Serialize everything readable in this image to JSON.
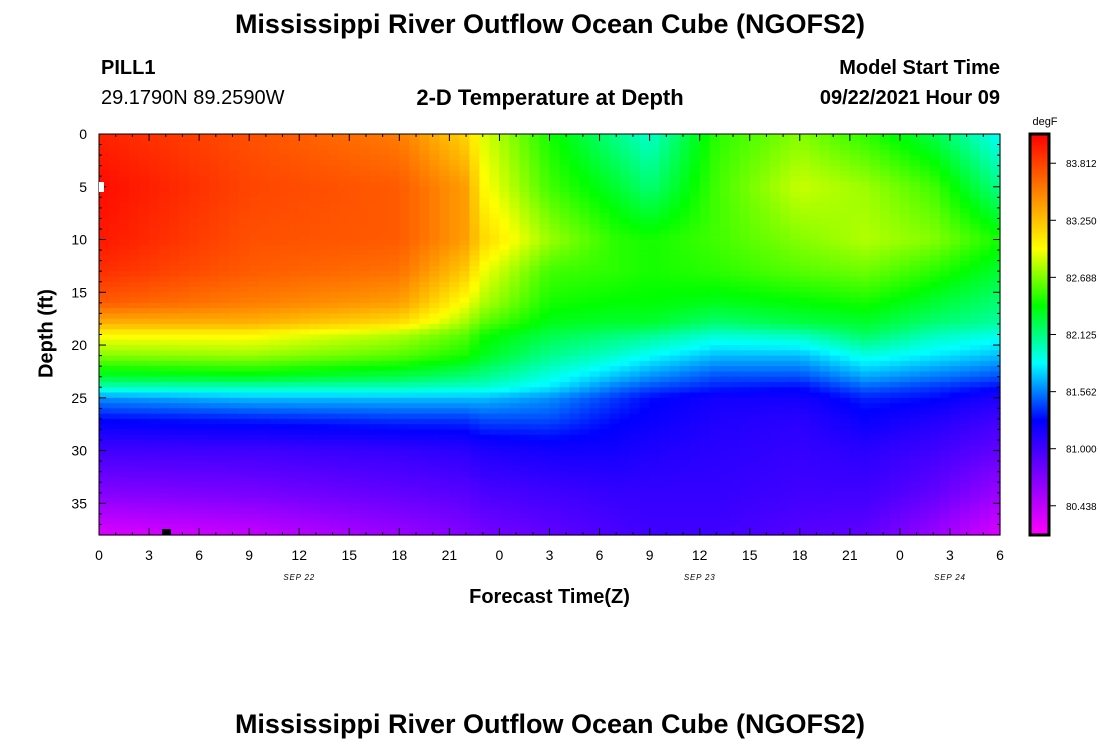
{
  "page": {
    "title_top": "Mississippi River Outflow Ocean Cube (NGOFS2)",
    "title_bottom": "Mississippi River Outflow Ocean Cube (NGOFS2)"
  },
  "station": {
    "name": "PILL1",
    "coords": "29.1790N  89.2590W"
  },
  "model": {
    "label": "Model Start Time",
    "start": "09/22/2021 Hour 09"
  },
  "chart_data": {
    "type": "heatmap",
    "title": "2-D Temperature at Depth",
    "xlabel": "Forecast Time(Z)",
    "ylabel": "Depth (ft)",
    "x_unit": "forecast hour index from 0Z Sep 22",
    "x_range": [
      0,
      54
    ],
    "y_range": [
      0,
      38
    ],
    "x_tick_labels": [
      "0",
      "3",
      "6",
      "9",
      "12",
      "15",
      "18",
      "21",
      "0",
      "3",
      "6",
      "9",
      "12",
      "15",
      "18",
      "21",
      "0",
      "3",
      "6"
    ],
    "y_ticks": [
      0,
      5,
      10,
      15,
      20,
      25,
      30,
      35
    ],
    "date_labels": [
      {
        "text": "SEP 22",
        "hour": 12
      },
      {
        "text": "SEP 23",
        "hour": 36
      },
      {
        "text": "SEP 24",
        "hour": 51
      }
    ],
    "colorbar": {
      "unit": "degF",
      "min": 80.15,
      "max": 84.1,
      "ticks": [
        "83.812",
        "83.250",
        "82.688",
        "82.125",
        "81.562",
        "81.000",
        "80.438"
      ],
      "tick_values": [
        83.812,
        83.25,
        82.688,
        82.125,
        81.562,
        81.0,
        80.438
      ],
      "colors": [
        "#ff00ff",
        "#8000ff",
        "#0000ff",
        "#00ffff",
        "#00ff00",
        "#ffff00",
        "#ff8000",
        "#ff0000"
      ]
    },
    "profiles": {
      "depths": [
        0,
        5,
        10,
        13,
        16,
        18,
        19,
        21,
        23,
        24,
        25,
        27,
        30,
        34,
        38
      ],
      "columns": [
        {
          "hour": 0,
          "temps": [
            83.95,
            84.05,
            84.0,
            83.9,
            83.7,
            83.3,
            83.0,
            82.7,
            82.3,
            82.0,
            81.6,
            81.3,
            81.0,
            80.7,
            80.3
          ]
        },
        {
          "hour": 9,
          "temps": [
            83.75,
            83.8,
            83.75,
            83.7,
            83.55,
            83.3,
            83.0,
            82.75,
            82.35,
            82.0,
            81.7,
            81.35,
            81.0,
            80.75,
            80.4
          ]
        },
        {
          "hour": 18,
          "temps": [
            83.55,
            83.7,
            83.7,
            83.6,
            83.4,
            83.1,
            82.8,
            82.6,
            82.25,
            82.0,
            81.7,
            81.4,
            81.05,
            80.85,
            80.6
          ]
        },
        {
          "hour": 22,
          "temps": [
            83.15,
            83.4,
            83.4,
            83.2,
            82.95,
            82.75,
            82.6,
            82.45,
            82.15,
            81.95,
            81.7,
            81.4,
            81.1,
            80.9,
            80.7
          ]
        },
        {
          "hour": 23,
          "temps": [
            82.9,
            83.0,
            83.15,
            82.95,
            82.8,
            82.6,
            82.45,
            82.35,
            82.1,
            81.95,
            81.7,
            81.45,
            81.15,
            80.95,
            80.75
          ]
        },
        {
          "hour": 27,
          "temps": [
            82.45,
            82.55,
            82.75,
            82.55,
            82.45,
            82.35,
            82.25,
            82.1,
            81.9,
            81.8,
            81.6,
            81.45,
            81.2,
            81.0,
            80.85
          ]
        },
        {
          "hour": 31,
          "temps": [
            82.1,
            82.3,
            82.5,
            82.5,
            82.4,
            82.3,
            82.15,
            81.95,
            81.7,
            81.55,
            81.4,
            81.3,
            81.2,
            81.05,
            80.95
          ]
        },
        {
          "hour": 33,
          "temps": [
            81.95,
            82.15,
            82.45,
            82.45,
            82.4,
            82.3,
            82.1,
            81.85,
            81.6,
            81.45,
            81.3,
            81.25,
            81.15,
            81.05,
            81.0
          ]
        },
        {
          "hour": 37,
          "temps": [
            82.5,
            82.55,
            82.55,
            82.5,
            82.35,
            82.15,
            81.95,
            81.7,
            81.45,
            81.35,
            81.2,
            81.15,
            81.1,
            81.05,
            81.0
          ]
        },
        {
          "hour": 42,
          "temps": [
            82.7,
            82.85,
            82.7,
            82.6,
            82.4,
            82.25,
            82.0,
            81.7,
            81.45,
            81.3,
            81.2,
            81.1,
            81.05,
            81.0,
            80.9
          ]
        },
        {
          "hour": 46,
          "temps": [
            82.5,
            82.75,
            82.8,
            82.65,
            82.45,
            82.3,
            82.2,
            81.9,
            81.65,
            81.5,
            81.35,
            81.25,
            81.1,
            81.0,
            80.85
          ]
        },
        {
          "hour": 50,
          "temps": [
            82.25,
            82.55,
            82.7,
            82.5,
            82.3,
            82.15,
            82.0,
            81.8,
            81.55,
            81.4,
            81.3,
            81.15,
            81.0,
            80.85,
            80.6
          ]
        },
        {
          "hour": 54,
          "temps": [
            81.85,
            82.1,
            82.45,
            82.3,
            82.15,
            82.05,
            81.9,
            81.7,
            81.45,
            81.3,
            81.15,
            81.0,
            80.85,
            80.6,
            80.3
          ]
        }
      ]
    }
  }
}
